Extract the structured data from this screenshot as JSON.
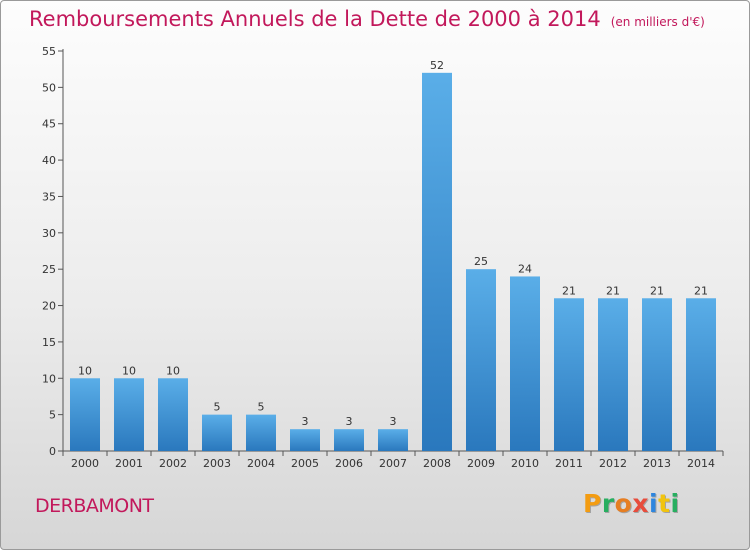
{
  "title": "Remboursements Annuels de la Dette de 2000 à 2014",
  "unit": "(en milliers d'€)",
  "commune": "DERBAMONT",
  "logo": {
    "letters": [
      "P",
      "r",
      "o",
      "x",
      "i",
      "t",
      "i"
    ],
    "colors": [
      "#f39c12",
      "#27ae60",
      "#e67e22",
      "#e74c3c",
      "#2e86de",
      "#f1c40f",
      "#27ae60"
    ]
  },
  "chart_data": {
    "type": "bar",
    "categories": [
      "2000",
      "2001",
      "2002",
      "2003",
      "2004",
      "2005",
      "2006",
      "2007",
      "2008",
      "2009",
      "2010",
      "2011",
      "2012",
      "2013",
      "2014"
    ],
    "values": [
      10,
      10,
      10,
      5,
      5,
      3,
      3,
      3,
      52,
      25,
      24,
      21,
      21,
      21,
      21
    ],
    "title": "Remboursements Annuels de la Dette de 2000 à 2014",
    "xlabel": "",
    "ylabel": "",
    "ylim": [
      0,
      55
    ],
    "yticks": [
      0,
      5,
      10,
      15,
      20,
      25,
      30,
      35,
      40,
      45,
      50,
      55
    ],
    "grid": false,
    "bar_color": "#3d8fd6"
  }
}
